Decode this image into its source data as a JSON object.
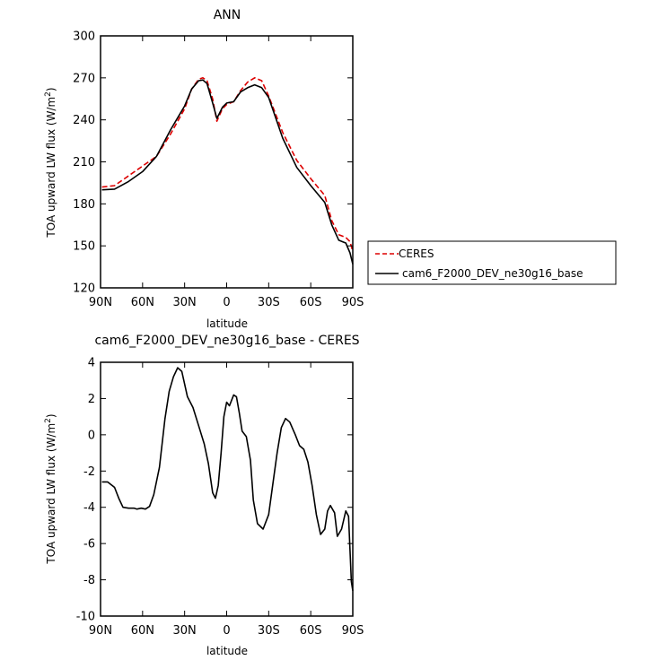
{
  "chart_data": [
    {
      "type": "line",
      "title": "ANN",
      "xlabel": "latitude",
      "ylabel": "TOA upward LW flux (W/m",
      "ylabel_sup": "2",
      "ylabel_tail": ")",
      "xlim": [
        90,
        -90
      ],
      "ylim": [
        120,
        300
      ],
      "x_ticks": [
        {
          "value": 90,
          "label": "90N"
        },
        {
          "value": 60,
          "label": "60N"
        },
        {
          "value": 30,
          "label": "30N"
        },
        {
          "value": 0,
          "label": "0"
        },
        {
          "value": -30,
          "label": "30S"
        },
        {
          "value": -60,
          "label": "60S"
        },
        {
          "value": -90,
          "label": "90S"
        }
      ],
      "y_ticks": [
        120,
        150,
        180,
        210,
        240,
        270,
        300
      ],
      "legend": {
        "position": "right"
      },
      "series": [
        {
          "name": "CERES",
          "color": "#dd0000",
          "dash": "dashed",
          "x": [
            89,
            80,
            70,
            60,
            50,
            40,
            30,
            25,
            20,
            17,
            14,
            10,
            7,
            3,
            0,
            -5,
            -10,
            -15,
            -20,
            -25,
            -30,
            -40,
            -50,
            -60,
            -70,
            -75,
            -80,
            -85,
            -88,
            -90
          ],
          "y": [
            192,
            193,
            200,
            207,
            214,
            230,
            248,
            262,
            269,
            270,
            268,
            255,
            239,
            248,
            251,
            253,
            261,
            267,
            270,
            268,
            257,
            231,
            211,
            198,
            186,
            168,
            158,
            156,
            153,
            146
          ]
        },
        {
          "name": "cam6_F2000_DEV_ne30g16_base",
          "color": "#000000",
          "dash": "solid",
          "x": [
            89,
            80,
            70,
            60,
            50,
            40,
            30,
            25,
            20,
            17,
            14,
            10,
            7,
            3,
            0,
            -5,
            -10,
            -15,
            -20,
            -25,
            -30,
            -40,
            -50,
            -60,
            -70,
            -75,
            -80,
            -85,
            -88,
            -90
          ],
          "y": [
            190,
            190.5,
            196,
            203,
            214,
            233,
            250,
            262,
            268,
            268.5,
            266,
            252,
            241,
            249,
            252,
            253,
            260,
            263,
            265,
            263,
            256,
            227,
            206,
            193,
            181,
            165,
            154,
            152,
            145,
            137
          ]
        }
      ]
    },
    {
      "type": "line",
      "title": "cam6_F2000_DEV_ne30g16_base - CERES",
      "xlabel": "latitude",
      "ylabel": "TOA upward LW flux (W/m",
      "ylabel_sup": "2",
      "ylabel_tail": ")",
      "xlim": [
        90,
        -90
      ],
      "ylim": [
        -10,
        4
      ],
      "x_ticks": [
        {
          "value": 90,
          "label": "90N"
        },
        {
          "value": 60,
          "label": "60N"
        },
        {
          "value": 30,
          "label": "30N"
        },
        {
          "value": 0,
          "label": "0"
        },
        {
          "value": -30,
          "label": "30S"
        },
        {
          "value": -60,
          "label": "60S"
        },
        {
          "value": -90,
          "label": "90S"
        }
      ],
      "y_ticks": [
        -10,
        -8,
        -6,
        -4,
        -2,
        0,
        2,
        4
      ],
      "series": [
        {
          "color": "#000000",
          "dash": "solid",
          "x": [
            89,
            85,
            80,
            77,
            74,
            70,
            66,
            64,
            61,
            58,
            55,
            52,
            48,
            44,
            41,
            38,
            35,
            32,
            28,
            24,
            20,
            16,
            13,
            10,
            8,
            6,
            4,
            2,
            0,
            -2,
            -5,
            -7,
            -9,
            -11,
            -14,
            -17,
            -19,
            -22,
            -26,
            -30,
            -33,
            -36,
            -39,
            -42,
            -45,
            -49,
            -52,
            -55,
            -58,
            -61,
            -64,
            -67,
            -70,
            -72,
            -74,
            -77,
            -79,
            -82,
            -85,
            -87,
            -89,
            -90
          ],
          "y": [
            -2.6,
            -2.6,
            -2.9,
            -3.5,
            -4.0,
            -4.05,
            -4.05,
            -4.1,
            -4.05,
            -4.1,
            -3.95,
            -3.3,
            -1.8,
            0.9,
            2.4,
            3.2,
            3.7,
            3.5,
            2.1,
            1.5,
            0.5,
            -0.5,
            -1.6,
            -3.2,
            -3.5,
            -2.8,
            -1.0,
            1.0,
            1.8,
            1.6,
            2.2,
            2.1,
            1.2,
            0.2,
            -0.1,
            -1.4,
            -3.6,
            -4.9,
            -5.2,
            -4.4,
            -2.7,
            -1.0,
            0.4,
            0.9,
            0.7,
            0.0,
            -0.6,
            -0.8,
            -1.5,
            -2.8,
            -4.4,
            -5.5,
            -5.2,
            -4.2,
            -3.9,
            -4.3,
            -5.6,
            -5.2,
            -4.2,
            -4.5,
            -8.1,
            -8.6
          ]
        }
      ]
    }
  ]
}
